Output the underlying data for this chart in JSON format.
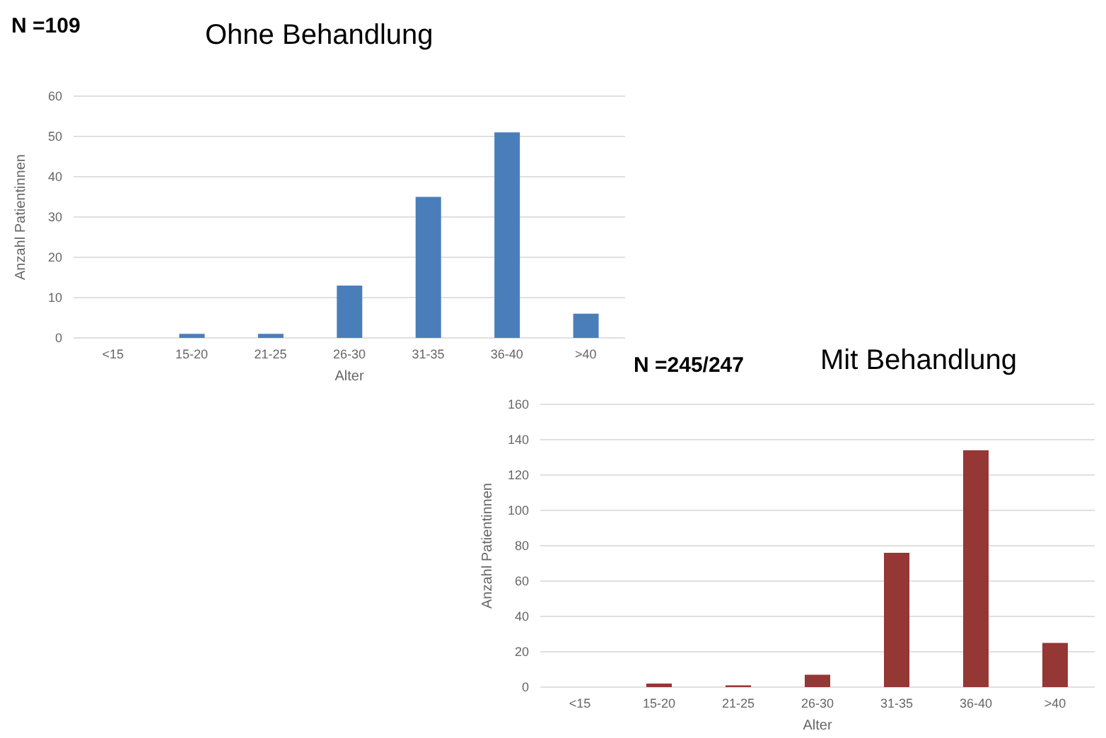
{
  "chart_data": [
    {
      "type": "bar",
      "title": "Ohne Behandlung",
      "subtitle": "N =109",
      "xlabel": "Alter",
      "ylabel": "Anzahl Patientinnen",
      "categories": [
        "<15",
        "15-20",
        "21-25",
        "26-30",
        "31-35",
        "36-40",
        ">40"
      ],
      "values": [
        0,
        1,
        1,
        13,
        35,
        51,
        6
      ],
      "color": "#4a7ebb",
      "ylim": [
        0,
        60
      ],
      "yticks": [
        0,
        10,
        20,
        30,
        40,
        50,
        60
      ],
      "grid": "y"
    },
    {
      "type": "bar",
      "title": "Mit Behandlung",
      "subtitle": "N =245/247",
      "xlabel": "Alter",
      "ylabel": "Anzahl Patientinnen",
      "categories": [
        "<15",
        "15-20",
        "21-25",
        "26-30",
        "31-35",
        "36-40",
        ">40"
      ],
      "values": [
        0,
        2,
        1,
        7,
        76,
        134,
        25
      ],
      "color": "#953735",
      "ylim": [
        0,
        160
      ],
      "yticks": [
        0,
        20,
        40,
        60,
        80,
        100,
        120,
        140,
        160
      ],
      "grid": "y"
    }
  ]
}
